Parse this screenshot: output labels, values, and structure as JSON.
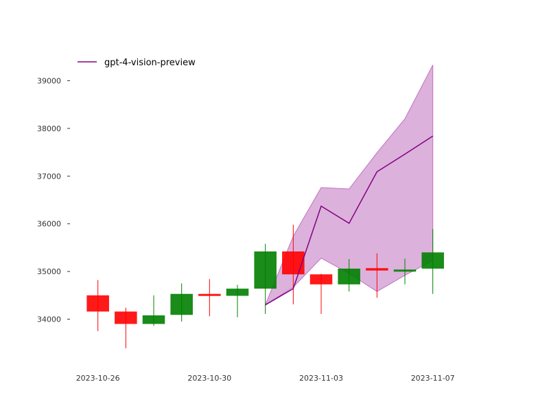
{
  "chart_data": {
    "type": "candlestick",
    "legend": {
      "placement": "top-left",
      "label": "gpt-4-vision-preview"
    },
    "colors": {
      "up": "#008000",
      "down": "#ff0000",
      "forecast_line": "#800080",
      "forecast_band": "#c071c0",
      "axis_text": "#333333"
    },
    "grid": false,
    "xlim": [
      "2023-10-25",
      "2023-11-09"
    ],
    "ylim": [
      33100,
      39900
    ],
    "x_ticks": [
      "2023-10-26",
      "2023-10-30",
      "2023-11-03",
      "2023-11-07"
    ],
    "y_ticks": [
      34000,
      35000,
      36000,
      37000,
      38000,
      39000
    ],
    "y_tick_labels": [
      "34000",
      "35000",
      "36000",
      "37000",
      "38000",
      "39000"
    ],
    "candles": [
      {
        "date": "2023-10-26",
        "open": 34500,
        "high": 34820,
        "low": 33750,
        "close": 34160
      },
      {
        "date": "2023-10-27",
        "open": 34160,
        "high": 34240,
        "low": 33390,
        "close": 33900
      },
      {
        "date": "2023-10-28",
        "open": 33900,
        "high": 34500,
        "low": 33860,
        "close": 34080
      },
      {
        "date": "2023-10-29",
        "open": 34090,
        "high": 34750,
        "low": 33950,
        "close": 34530
      },
      {
        "date": "2023-10-30",
        "open": 34530,
        "high": 34840,
        "low": 34060,
        "close": 34490
      },
      {
        "date": "2023-10-31",
        "open": 34490,
        "high": 34720,
        "low": 34040,
        "close": 34640
      },
      {
        "date": "2023-11-01",
        "open": 34640,
        "high": 35580,
        "low": 34110,
        "close": 35420
      },
      {
        "date": "2023-11-02",
        "open": 35420,
        "high": 35980,
        "low": 34310,
        "close": 34940
      },
      {
        "date": "2023-11-03",
        "open": 34940,
        "high": 34950,
        "low": 34110,
        "close": 34730
      },
      {
        "date": "2023-11-04",
        "open": 34730,
        "high": 35260,
        "low": 34580,
        "close": 35060
      },
      {
        "date": "2023-11-05",
        "open": 35070,
        "high": 35380,
        "low": 34450,
        "close": 35020
      },
      {
        "date": "2023-11-06",
        "open": 35010,
        "high": 35270,
        "low": 34730,
        "close": 35040
      },
      {
        "date": "2023-11-07",
        "open": 35060,
        "high": 35890,
        "low": 34530,
        "close": 35400
      }
    ],
    "forecast": {
      "name": "gpt-4-vision-preview",
      "dates": [
        "2023-11-01",
        "2023-11-02",
        "2023-11-03",
        "2023-11-04",
        "2023-11-05",
        "2023-11-06",
        "2023-11-07"
      ],
      "mean": [
        34300,
        34640,
        36370,
        36010,
        37090,
        37460,
        37840
      ],
      "lower": [
        34300,
        34670,
        35280,
        34960,
        34580,
        34920,
        35230
      ],
      "upper": [
        34300,
        35740,
        36760,
        36730,
        37490,
        38200,
        39330
      ]
    }
  }
}
